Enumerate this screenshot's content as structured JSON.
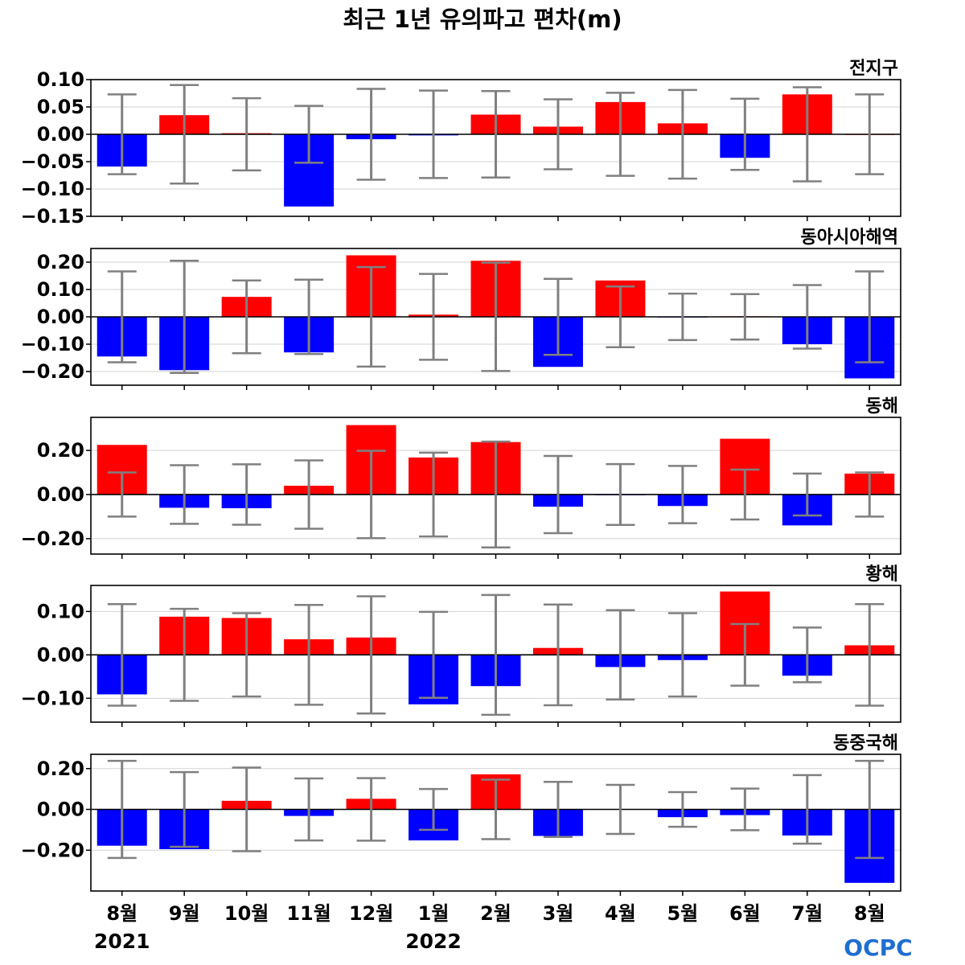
{
  "title": "최근 1년 유의파고 편차(m)",
  "logo": "OCPC",
  "years": [
    {
      "label": "2021",
      "category_index": 0
    },
    {
      "label": "2022",
      "category_index": 5
    }
  ],
  "colors": {
    "positive": "#ff0000",
    "negative": "#0000ff",
    "error_bar": "#808080",
    "grid": "#d3d3d3",
    "zero_line": "#000000"
  },
  "chart_data": [
    {
      "type": "bar",
      "title": "전지구",
      "categories": [
        "8월",
        "9월",
        "10월",
        "11월",
        "12월",
        "1월",
        "2월",
        "3월",
        "4월",
        "5월",
        "6월",
        "7월",
        "8월"
      ],
      "values": [
        -0.059,
        0.035,
        0.002,
        -0.132,
        -0.009,
        -0.002,
        0.036,
        0.014,
        0.059,
        0.02,
        -0.043,
        0.073,
        0.0
      ],
      "error": [
        0.073,
        0.09,
        0.066,
        0.052,
        0.083,
        0.08,
        0.079,
        0.064,
        0.076,
        0.081,
        0.065,
        0.086,
        0.073
      ],
      "ylim": [
        -0.15,
        0.1
      ],
      "yticks": [
        0.1,
        0.05,
        0.0,
        -0.05,
        -0.1,
        -0.15
      ],
      "ytick_labels": [
        "0.10",
        "0.05",
        "0.00",
        "−0.05",
        "−0.10",
        "−0.15"
      ],
      "grid": true
    },
    {
      "type": "bar",
      "title": "동아시아해역",
      "categories": [
        "8월",
        "9월",
        "10월",
        "11월",
        "12월",
        "1월",
        "2월",
        "3월",
        "4월",
        "5월",
        "6월",
        "7월",
        "8월"
      ],
      "values": [
        -0.145,
        -0.195,
        0.073,
        -0.13,
        0.225,
        0.008,
        0.205,
        -0.183,
        0.133,
        -0.002,
        0.002,
        -0.1,
        -0.225
      ],
      "error": [
        0.166,
        0.205,
        0.133,
        0.136,
        0.182,
        0.157,
        0.198,
        0.139,
        0.111,
        0.085,
        0.083,
        0.116,
        0.166
      ],
      "ylim": [
        -0.25,
        0.25
      ],
      "yticks": [
        0.2,
        0.1,
        0.0,
        -0.1,
        -0.2
      ],
      "ytick_labels": [
        "0.20",
        "0.10",
        "0.00",
        "−0.10",
        "−0.20"
      ],
      "grid": true
    },
    {
      "type": "bar",
      "title": "동해",
      "categories": [
        "8월",
        "9월",
        "10월",
        "11월",
        "12월",
        "1월",
        "2월",
        "3월",
        "4월",
        "5월",
        "6월",
        "7월",
        "8월"
      ],
      "values": [
        0.225,
        -0.06,
        -0.062,
        0.04,
        0.315,
        0.168,
        0.238,
        -0.055,
        -0.003,
        -0.052,
        0.253,
        -0.14,
        0.095
      ],
      "error": [
        0.1,
        0.133,
        0.137,
        0.155,
        0.198,
        0.19,
        0.24,
        0.175,
        0.138,
        0.13,
        0.113,
        0.095,
        0.1
      ],
      "ylim": [
        -0.27,
        0.35
      ],
      "yticks": [
        0.2,
        0.0,
        -0.2
      ],
      "ytick_labels": [
        "0.20",
        "0.00",
        "−0.20"
      ],
      "grid": true
    },
    {
      "type": "bar",
      "title": "황해",
      "categories": [
        "8월",
        "9월",
        "10월",
        "11월",
        "12월",
        "1월",
        "2월",
        "3월",
        "4월",
        "5월",
        "6월",
        "7월",
        "8월"
      ],
      "values": [
        -0.091,
        0.088,
        0.085,
        0.036,
        0.04,
        -0.114,
        -0.072,
        0.016,
        -0.028,
        -0.012,
        0.146,
        -0.048,
        0.022
      ],
      "error": [
        0.117,
        0.106,
        0.096,
        0.115,
        0.135,
        0.099,
        0.138,
        0.116,
        0.103,
        0.096,
        0.071,
        0.063,
        0.117
      ],
      "ylim": [
        -0.155,
        0.16
      ],
      "yticks": [
        0.1,
        0.0,
        -0.1
      ],
      "ytick_labels": [
        "0.10",
        "0.00",
        "−0.10"
      ],
      "grid": true
    },
    {
      "type": "bar",
      "title": "동중국해",
      "categories": [
        "8월",
        "9월",
        "10월",
        "11월",
        "12월",
        "1월",
        "2월",
        "3월",
        "4월",
        "5월",
        "6월",
        "7월",
        "8월"
      ],
      "values": [
        -0.178,
        -0.195,
        0.042,
        -0.032,
        0.052,
        -0.152,
        0.172,
        -0.13,
        0.002,
        -0.038,
        -0.028,
        -0.128,
        -0.36
      ],
      "error": [
        0.238,
        0.183,
        0.205,
        0.152,
        0.153,
        0.1,
        0.146,
        0.135,
        0.12,
        0.085,
        0.102,
        0.168,
        0.238
      ],
      "ylim": [
        -0.4,
        0.27
      ],
      "yticks": [
        0.2,
        0.0,
        -0.2
      ],
      "ytick_labels": [
        "0.20",
        "0.00",
        "−0.20"
      ],
      "grid": true
    }
  ]
}
